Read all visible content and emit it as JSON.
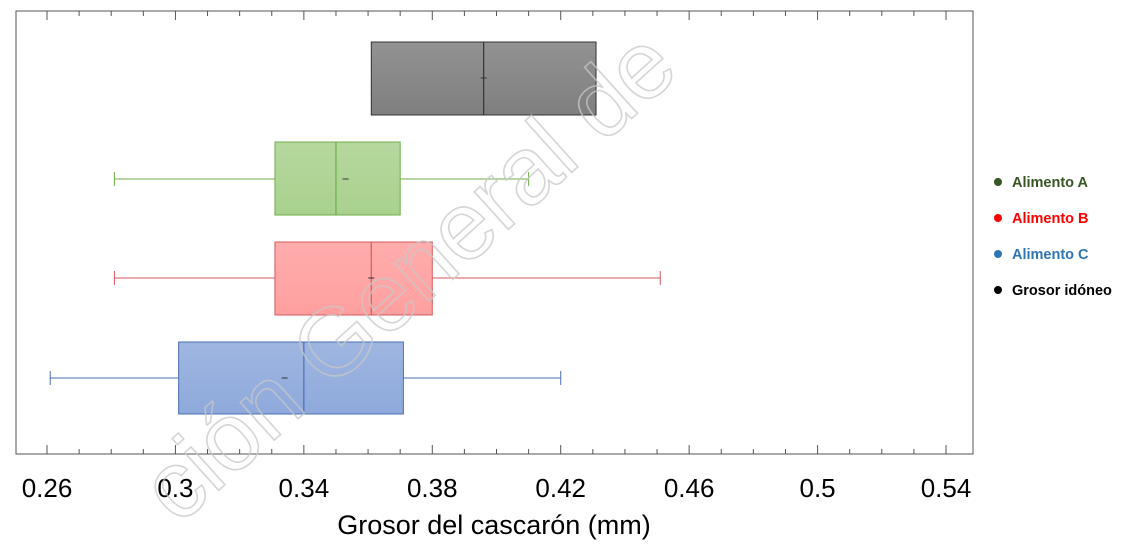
{
  "chart_data": {
    "type": "boxplot",
    "orientation": "horizontal",
    "xlabel": "Grosor del cascarón (mm)",
    "xlim": [
      0.25,
      0.55
    ],
    "xticks": [
      "0.26",
      "0.3",
      "0.34",
      "0.38",
      "0.42",
      "0.46",
      "0.5",
      "0.54"
    ],
    "series": [
      {
        "name": "Grosor idóneo",
        "color": "#7f7f7f",
        "edge": "#333333",
        "marker": "#000000",
        "label_color": "#000000",
        "min": null,
        "q1": 0.361,
        "median": 0.396,
        "q3": 0.431,
        "max": null,
        "mean": 0.396
      },
      {
        "name": "Alimento A",
        "color": "#a9d18e",
        "edge": "#70ad47",
        "marker": "#375623",
        "label_color": "#375623",
        "min": 0.281,
        "q1": 0.331,
        "median": 0.35,
        "q3": 0.37,
        "max": 0.41,
        "mean": 0.353
      },
      {
        "name": "Alimento B",
        "color": "#ff9f9f",
        "edge": "#d9585f",
        "marker": "#ff0000",
        "label_color": "#ff0000",
        "min": 0.281,
        "q1": 0.331,
        "median": 0.361,
        "q3": 0.38,
        "max": 0.451,
        "mean": 0.361
      },
      {
        "name": "Alimento C",
        "color": "#8ea9db",
        "edge": "#4a6fb5",
        "marker": "#2e75b6",
        "label_color": "#2e75b6",
        "min": 0.261,
        "q1": 0.301,
        "median": 0.34,
        "q3": 0.371,
        "max": 0.42,
        "mean": 0.334
      }
    ],
    "legend_order": [
      "Alimento A",
      "Alimento B",
      "Alimento C",
      "Grosor idóneo"
    ],
    "legend": "right",
    "grid": false
  },
  "watermark": "ción General de"
}
